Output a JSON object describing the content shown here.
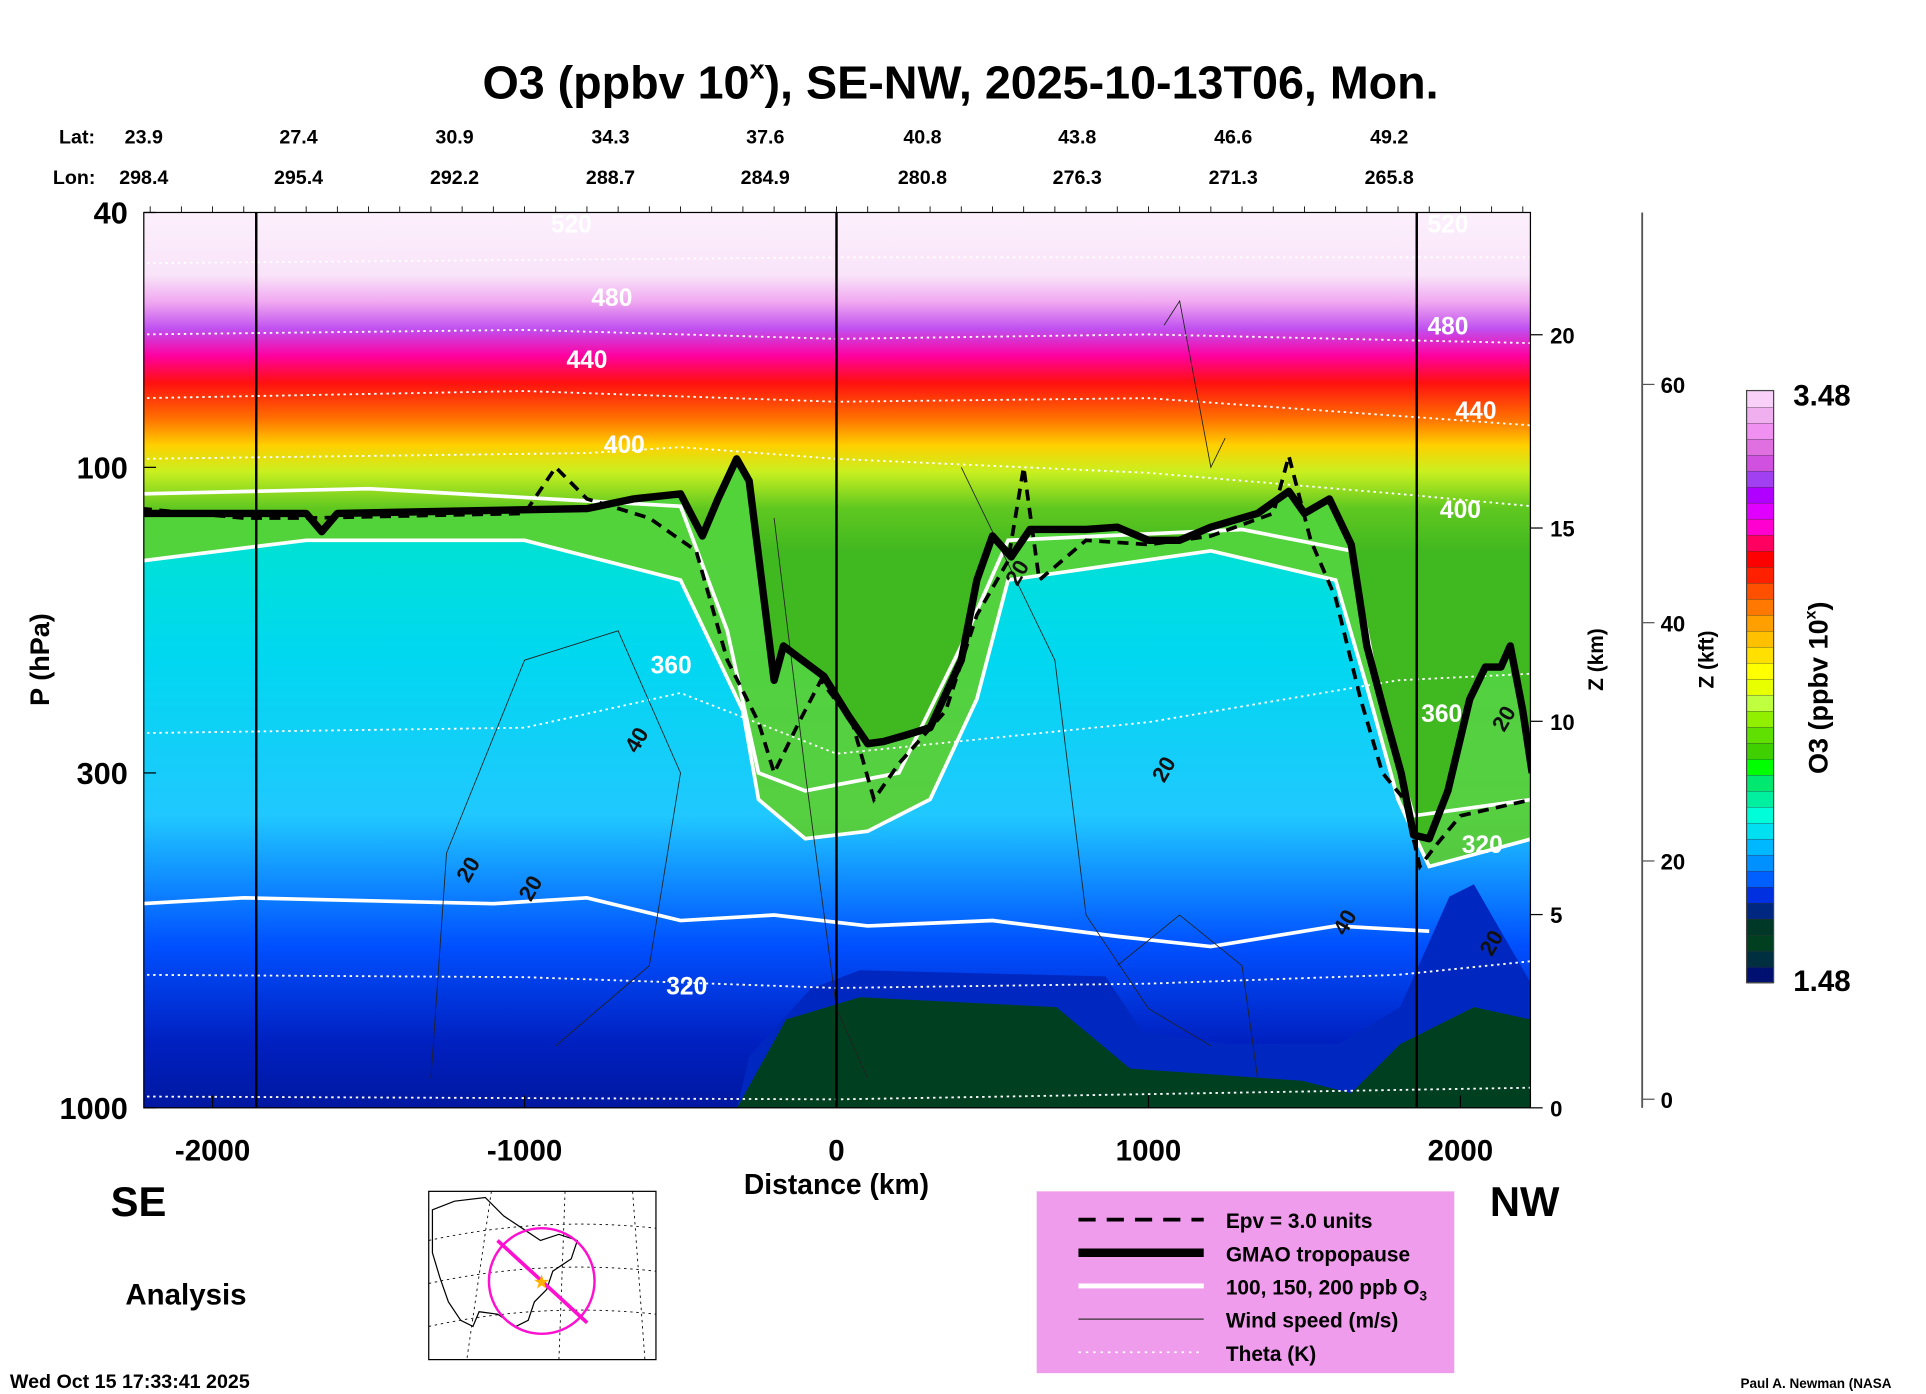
{
  "title": {
    "main": "O3 (ppbv 10",
    "sup": "x",
    "rest": "), SE-NW, 2025-10-13T06, Mon."
  },
  "coords": {
    "lat_label": "Lat:",
    "lon_label": "Lon:",
    "lat": [
      "23.9",
      "27.4",
      "30.9",
      "34.3",
      "37.6",
      "40.8",
      "43.8",
      "46.6",
      "49.2"
    ],
    "lon": [
      "298.4",
      "295.4",
      "292.2",
      "288.7",
      "284.9",
      "280.8",
      "276.3",
      "271.3",
      "265.8"
    ]
  },
  "labels": {
    "se": "SE",
    "nw": "NW",
    "analysis": "Analysis",
    "timestamp": "Wed Oct 15 17:33:41 2025",
    "credit": "Paul A. Newman (NASA"
  },
  "legend": {
    "items": [
      {
        "label": "Epv = 3.0 units",
        "style": "dashed"
      },
      {
        "label": "GMAO tropopause",
        "style": "thick"
      },
      {
        "label": "100, 150, 200 ppb O",
        "sub": "3",
        "style": "white"
      },
      {
        "label": "Wind speed (m/s)",
        "style": "thin"
      },
      {
        "label": "Theta (K)",
        "style": "dotted"
      }
    ],
    "bg": "#f09cec"
  },
  "chart_data": {
    "type": "heatmap",
    "title": "O3 (ppbv 10^x), SE-NW, 2025-10-13T06, Mon.",
    "xlabel": "Distance (km)",
    "ylabel": "P (hPa)",
    "ylabel_right_km": "Z (km)",
    "ylabel_right_kft": "Z (kft)",
    "xlim": [
      -2230,
      2230
    ],
    "ylim": [
      1000,
      40
    ],
    "yscale": "log",
    "xticks": [
      -2000,
      -1000,
      0,
      1000,
      2000
    ],
    "yticks": [
      40,
      100,
      300,
      1000
    ],
    "zkm_ticks": [
      0,
      5,
      10,
      15,
      20
    ],
    "zkft_ticks": [
      0,
      20,
      40,
      60
    ],
    "section_markers_km": [
      -1860,
      0,
      1860
    ],
    "colorbar": {
      "label": "O3 (ppbv 10",
      "label_sup": "x",
      "label_end": ")",
      "min": "1.48",
      "max": "3.48",
      "colors": [
        "#001070",
        "#003040",
        "#004020",
        "#003828",
        "#002880",
        "#0030e0",
        "#0060ff",
        "#0090ff",
        "#00b8ff",
        "#00e0f0",
        "#00ffd8",
        "#00f0a0",
        "#00e870",
        "#00ff00",
        "#40d000",
        "#60e000",
        "#90f000",
        "#c0ff40",
        "#e8ff00",
        "#ffff00",
        "#ffe000",
        "#ffc000",
        "#ffa000",
        "#ff7800",
        "#ff5000",
        "#ff2000",
        "#ff0000",
        "#ff0060",
        "#ff00d0",
        "#e000ff",
        "#b000ff",
        "#a040f0",
        "#d050e0",
        "#e070e0",
        "#f090f0",
        "#f0b0f0",
        "#f8d0f8"
      ]
    },
    "tropopause": [
      [
        -2230,
        118
      ],
      [
        -1700,
        118
      ],
      [
        -1650,
        126
      ],
      [
        -1600,
        118
      ],
      [
        -800,
        116
      ],
      [
        -650,
        112
      ],
      [
        -500,
        110
      ],
      [
        -430,
        128
      ],
      [
        -380,
        112
      ],
      [
        -320,
        97
      ],
      [
        -280,
        105
      ],
      [
        -240,
        150
      ],
      [
        -200,
        215
      ],
      [
        -170,
        190
      ],
      [
        -110,
        200
      ],
      [
        -40,
        212
      ],
      [
        40,
        245
      ],
      [
        100,
        270
      ],
      [
        150,
        268
      ],
      [
        220,
        262
      ],
      [
        300,
        255
      ],
      [
        400,
        200
      ],
      [
        450,
        150
      ],
      [
        500,
        128
      ],
      [
        560,
        138
      ],
      [
        620,
        125
      ],
      [
        800,
        125
      ],
      [
        900,
        124
      ],
      [
        1000,
        130
      ],
      [
        1100,
        130
      ],
      [
        1200,
        124
      ],
      [
        1350,
        118
      ],
      [
        1450,
        109
      ],
      [
        1500,
        118
      ],
      [
        1580,
        112
      ],
      [
        1650,
        132
      ],
      [
        1700,
        190
      ],
      [
        1760,
        245
      ],
      [
        1810,
        300
      ],
      [
        1850,
        375
      ],
      [
        1900,
        380
      ],
      [
        1960,
        320
      ],
      [
        2030,
        230
      ],
      [
        2080,
        205
      ],
      [
        2130,
        205
      ],
      [
        2160,
        190
      ],
      [
        2200,
        240
      ],
      [
        2230,
        300
      ]
    ],
    "epv": [
      [
        -2230,
        116
      ],
      [
        -1900,
        120
      ],
      [
        -1700,
        120
      ],
      [
        -1000,
        118
      ],
      [
        -900,
        100
      ],
      [
        -800,
        112
      ],
      [
        -600,
        120
      ],
      [
        -450,
        135
      ],
      [
        -350,
        200
      ],
      [
        -250,
        250
      ],
      [
        -200,
        300
      ],
      [
        -120,
        250
      ],
      [
        -50,
        215
      ],
      [
        50,
        250
      ],
      [
        120,
        330
      ],
      [
        200,
        290
      ],
      [
        350,
        240
      ],
      [
        450,
        170
      ],
      [
        550,
        140
      ],
      [
        600,
        100
      ],
      [
        650,
        150
      ],
      [
        800,
        130
      ],
      [
        1000,
        132
      ],
      [
        1200,
        128
      ],
      [
        1400,
        118
      ],
      [
        1450,
        96
      ],
      [
        1520,
        130
      ],
      [
        1600,
        160
      ],
      [
        1680,
        230
      ],
      [
        1750,
        300
      ],
      [
        1820,
        330
      ],
      [
        1870,
        420
      ],
      [
        1920,
        390
      ],
      [
        2000,
        350
      ],
      [
        2230,
        330
      ]
    ],
    "ozone_contours": [
      {
        "ppb": 100,
        "points": [
          [
            -2230,
            140
          ],
          [
            -1700,
            130
          ],
          [
            -1000,
            130
          ],
          [
            -500,
            150
          ],
          [
            -300,
            240
          ],
          [
            -250,
            330
          ],
          [
            -100,
            380
          ],
          [
            100,
            370
          ],
          [
            300,
            330
          ],
          [
            450,
            230
          ],
          [
            550,
            150
          ],
          [
            1200,
            135
          ],
          [
            1600,
            150
          ],
          [
            1700,
            220
          ],
          [
            1800,
            330
          ],
          [
            1900,
            420
          ],
          [
            2230,
            380
          ]
        ]
      },
      {
        "ppb": 100,
        "points": [
          [
            -2230,
            480
          ],
          [
            -1900,
            470
          ],
          [
            -1100,
            480
          ],
          [
            -800,
            470
          ],
          [
            -500,
            510
          ],
          [
            -200,
            500
          ],
          [
            100,
            520
          ],
          [
            500,
            510
          ],
          [
            900,
            540
          ],
          [
            1200,
            560
          ],
          [
            1600,
            520
          ],
          [
            1900,
            530
          ]
        ]
      },
      {
        "ppb": 150,
        "points": [
          [
            -2230,
            110
          ],
          [
            -1500,
            108
          ],
          [
            -500,
            115
          ],
          [
            -350,
            180
          ],
          [
            -250,
            300
          ],
          [
            -100,
            320
          ],
          [
            200,
            300
          ],
          [
            400,
            190
          ],
          [
            550,
            130
          ],
          [
            1300,
            125
          ],
          [
            1650,
            135
          ],
          [
            1750,
            240
          ],
          [
            1850,
            350
          ],
          [
            2230,
            330
          ]
        ]
      }
    ],
    "theta": [
      {
        "K": 320,
        "points": [
          [
            -2230,
            620
          ],
          [
            -1000,
            625
          ],
          [
            0,
            650
          ],
          [
            1000,
            640
          ],
          [
            1800,
            620
          ],
          [
            2230,
            590
          ]
        ]
      },
      {
        "K": 360,
        "points": [
          [
            -2230,
            260
          ],
          [
            -1000,
            255
          ],
          [
            -500,
            225
          ],
          [
            0,
            280
          ],
          [
            1000,
            250
          ],
          [
            1800,
            215
          ],
          [
            2230,
            210
          ]
        ]
      },
      {
        "K": 400,
        "points": [
          [
            -2230,
            97
          ],
          [
            -800,
            95
          ],
          [
            -500,
            93
          ],
          [
            0,
            97
          ],
          [
            1000,
            102
          ],
          [
            1800,
            110
          ],
          [
            2230,
            115
          ]
        ]
      },
      {
        "K": 440,
        "points": [
          [
            -2230,
            78
          ],
          [
            -1000,
            76
          ],
          [
            0,
            79
          ],
          [
            1000,
            78
          ],
          [
            2230,
            86
          ]
        ]
      },
      {
        "K": 480,
        "points": [
          [
            -2230,
            62
          ],
          [
            -1000,
            61
          ],
          [
            0,
            63
          ],
          [
            1000,
            62
          ],
          [
            2230,
            64
          ]
        ]
      },
      {
        "K": 520,
        "points": [
          [
            -2230,
            48
          ],
          [
            0,
            47
          ],
          [
            2230,
            47
          ]
        ]
      },
      {
        "K": 300,
        "points": [
          [
            -2230,
            960
          ],
          [
            0,
            970
          ],
          [
            2230,
            930
          ]
        ]
      }
    ],
    "theta_labels": [
      {
        "text": "520",
        "x": -850,
        "p": 43
      },
      {
        "text": "480",
        "x": -720,
        "p": 56
      },
      {
        "text": "440",
        "x": -800,
        "p": 70
      },
      {
        "text": "400",
        "x": -680,
        "p": 95
      },
      {
        "text": "360",
        "x": -530,
        "p": 210
      },
      {
        "text": "320",
        "x": -480,
        "p": 665
      },
      {
        "text": "520",
        "x": 1960,
        "p": 43
      },
      {
        "text": "480",
        "x": 1960,
        "p": 62
      },
      {
        "text": "440",
        "x": 2050,
        "p": 84
      },
      {
        "text": "400",
        "x": 2000,
        "p": 120
      },
      {
        "text": "360",
        "x": 1940,
        "p": 250
      },
      {
        "text": "320",
        "x": 2070,
        "p": 400
      }
    ],
    "wind_labels": [
      {
        "text": "40",
        "x": -620,
        "p": 270
      },
      {
        "text": "20",
        "x": -1160,
        "p": 430
      },
      {
        "text": "20",
        "x": -960,
        "p": 460
      },
      {
        "text": "20",
        "x": 1070,
        "p": 300
      },
      {
        "text": "20",
        "x": 600,
        "p": 148
      },
      {
        "text": "40",
        "x": 1650,
        "p": 520
      },
      {
        "text": "20",
        "x": 2120,
        "p": 560
      },
      {
        "text": "20",
        "x": 2160,
        "p": 250
      }
    ]
  }
}
